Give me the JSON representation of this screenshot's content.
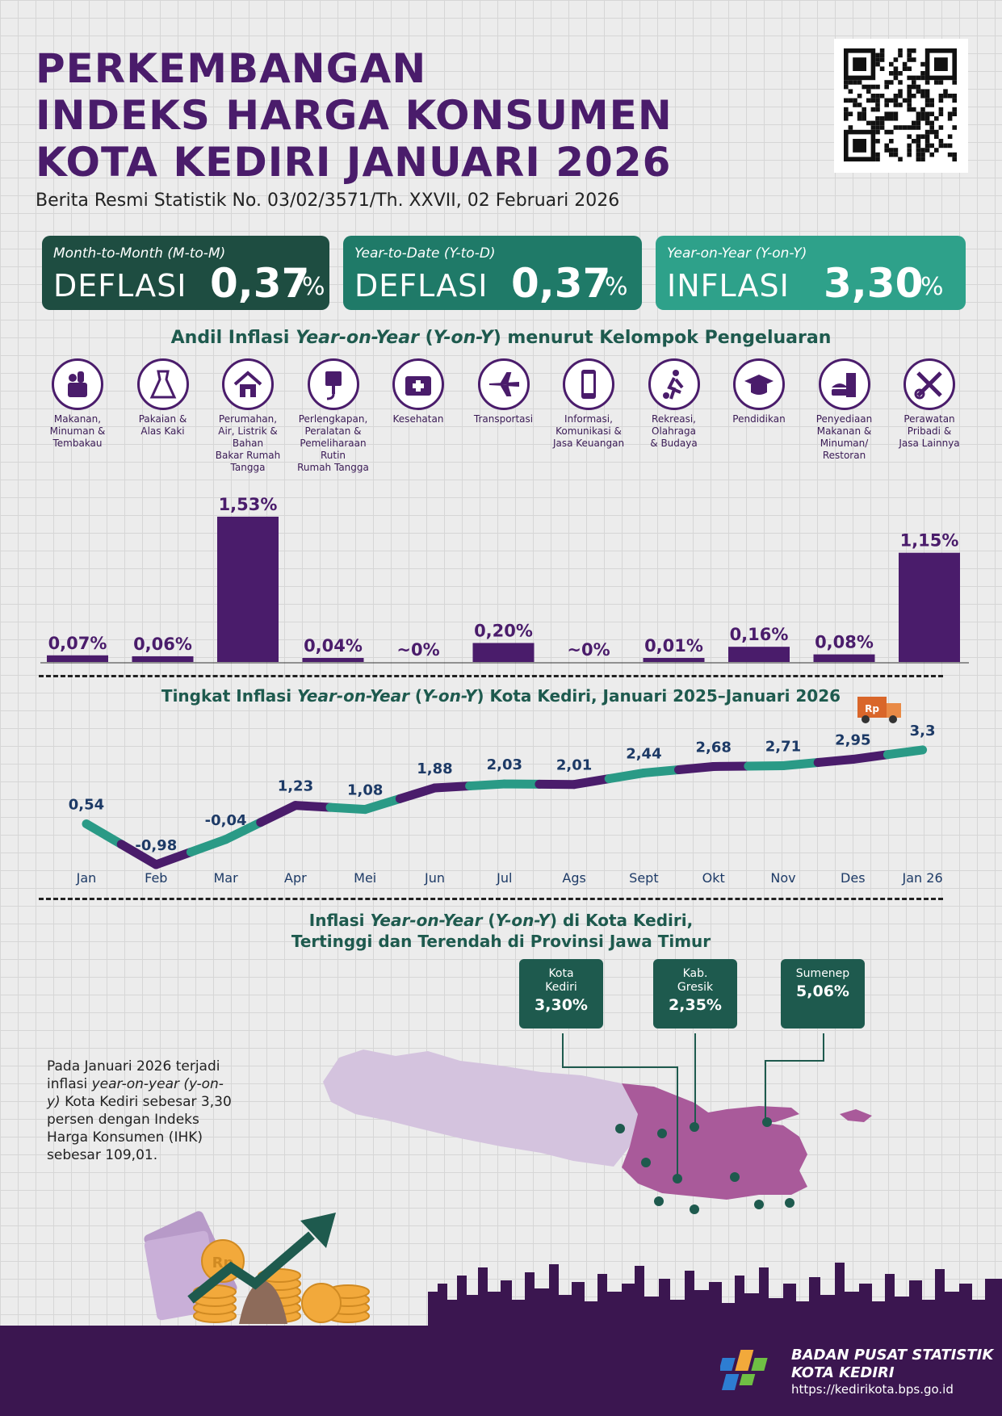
{
  "header": {
    "title_line1": "PERKEMBANGAN",
    "title_line2": "INDEKS HARGA KONSUMEN",
    "title_line3": "KOTA KEDIRI JANUARI 2026",
    "subtitle": "Berita Resmi Statistik No. 03/02/3571/Th. XXVII, 02 Februari 2026"
  },
  "cards": [
    {
      "label": "Month-to-Month (M-to-M)",
      "word": "DEFLASI",
      "value": "0,37",
      "unit": "%",
      "color": "#1e4d41"
    },
    {
      "label": "Year-to-Date (Y-to-D)",
      "word": "DEFLASI",
      "value": "0,37",
      "unit": "%",
      "color": "#1f7a68"
    },
    {
      "label": "Year-on-Year (Y-on-Y)",
      "word": "INFLASI",
      "value": "3,30",
      "unit": "%",
      "color": "#2ea18a"
    }
  ],
  "andil": {
    "title_pre": "Andil Inflasi ",
    "title_em": "Year-on-Year",
    "title_mid": " (",
    "title_em2": "Y-on-Y",
    "title_post": ") menurut Kelompok Pengeluaran"
  },
  "categories": [
    {
      "icon": "food-basket-icon",
      "label": "Makanan,\nMinuman &\nTembakau"
    },
    {
      "icon": "dress-icon",
      "label": "Pakaian &\nAlas Kaki"
    },
    {
      "icon": "house-icon",
      "label": "Perumahan,\nAir, Listrik &\nBahan\nBakar Rumah\nTangga"
    },
    {
      "icon": "plug-icon",
      "label": "Perlengkapan,\nPeralatan &\nPemeliharaan\nRutin\nRumah Tangga"
    },
    {
      "icon": "medical-kit-icon",
      "label": "Kesehatan"
    },
    {
      "icon": "airplane-icon",
      "label": "Transportasi"
    },
    {
      "icon": "smartphone-icon",
      "label": "Informasi,\nKomunikasi &\nJasa Keuangan"
    },
    {
      "icon": "soccer-player-icon",
      "label": "Rekreasi,\nOlahraga\n& Budaya"
    },
    {
      "icon": "graduation-cap-icon",
      "label": "Pendidikan"
    },
    {
      "icon": "fast-food-icon",
      "label": "Penyediaan\nMakanan &\nMinuman/\nRestoran"
    },
    {
      "icon": "scissors-comb-icon",
      "label": "Perawatan\nPribadi &\nJasa Lainnya"
    }
  ],
  "chart_data": [
    {
      "type": "bar",
      "categories": [
        "Makanan, Minuman & Tembakau",
        "Pakaian & Alas Kaki",
        "Perumahan, Air, Listrik & Bahan Bakar Rumah Tangga",
        "Perlengkapan, Peralatan & Pemeliharaan Rutin Rumah Tangga",
        "Kesehatan",
        "Transportasi",
        "Informasi, Komunikasi & Jasa Keuangan",
        "Rekreasi, Olahraga & Budaya",
        "Pendidikan",
        "Penyediaan Makanan & Minuman/ Restoran",
        "Perawatan Pribadi & Jasa Lainnya"
      ],
      "values": [
        0.07,
        0.06,
        1.53,
        0.04,
        0,
        0.2,
        0,
        0.01,
        0.16,
        0.08,
        1.15
      ],
      "data_labels": [
        "0,07%",
        "0,06%",
        "1,53%",
        "0,04%",
        "~0%",
        "0,20%",
        "~0%",
        "0,01%",
        "0,16%",
        "0,08%",
        "1,15%"
      ],
      "bar_color": "#4a1c6b"
    },
    {
      "type": "line",
      "title": "Tingkat Inflasi Year-on-Year (Y-on-Y) Kota Kediri, Januari 2025–Januari 2026",
      "categories": [
        "Jan",
        "Feb",
        "Mar",
        "Apr",
        "Mei",
        "Jun",
        "Jul",
        "Ags",
        "Sept",
        "Okt",
        "Nov",
        "Des",
        "Jan 26"
      ],
      "values": [
        0.54,
        -0.98,
        -0.04,
        1.23,
        1.08,
        1.88,
        2.03,
        2.01,
        2.44,
        2.68,
        2.71,
        2.95,
        3.3
      ],
      "data_labels": [
        "0,54",
        "-0,98",
        "-0,04",
        "1,23",
        "1,08",
        "1,88",
        "2,03",
        "2,01",
        "2,44",
        "2,68",
        "2,71",
        "2,95",
        "3,3"
      ],
      "colors": [
        "#2a9a86",
        "#4a1c6b"
      ]
    }
  ],
  "line_title": {
    "pre": "Tingkat Inflasi ",
    "em": "Year-on-Year",
    "mid": " (",
    "em2": "Y-on-Y",
    "post": ") Kota Kediri, Januari 2025–Januari 2026"
  },
  "map_section": {
    "title1_pre": "Inflasi ",
    "title1_em": "Year-on-Year",
    "title1_mid": " (",
    "title1_em2": "Y-on-Y",
    "title1_post": ") di Kota Kediri,",
    "title2": "Tertinggi dan Terendah di Provinsi Jawa Timur",
    "callouts": [
      {
        "name": "Kota\nKediri",
        "value": "3,30%"
      },
      {
        "name": "Kab.\nGresik",
        "value": "2,35%"
      },
      {
        "name": "Sumenep",
        "value": "5,06%"
      }
    ],
    "note_line1": "Pada Januari 2026 terjadi inflasi ",
    "note_em": "year-on-year (y-on-y)",
    "note_line2": " Kota Kediri sebesar 3,30 persen dengan Indeks Harga Konsumen (IHK) sebesar 109,01."
  },
  "footer": {
    "org_line1": "BADAN PUSAT STATISTIK",
    "org_line2": "KOTA KEDIRI",
    "url": "https://kedirikota.bps.go.id"
  },
  "truck_label": "Rp",
  "coin_label": "Rp"
}
